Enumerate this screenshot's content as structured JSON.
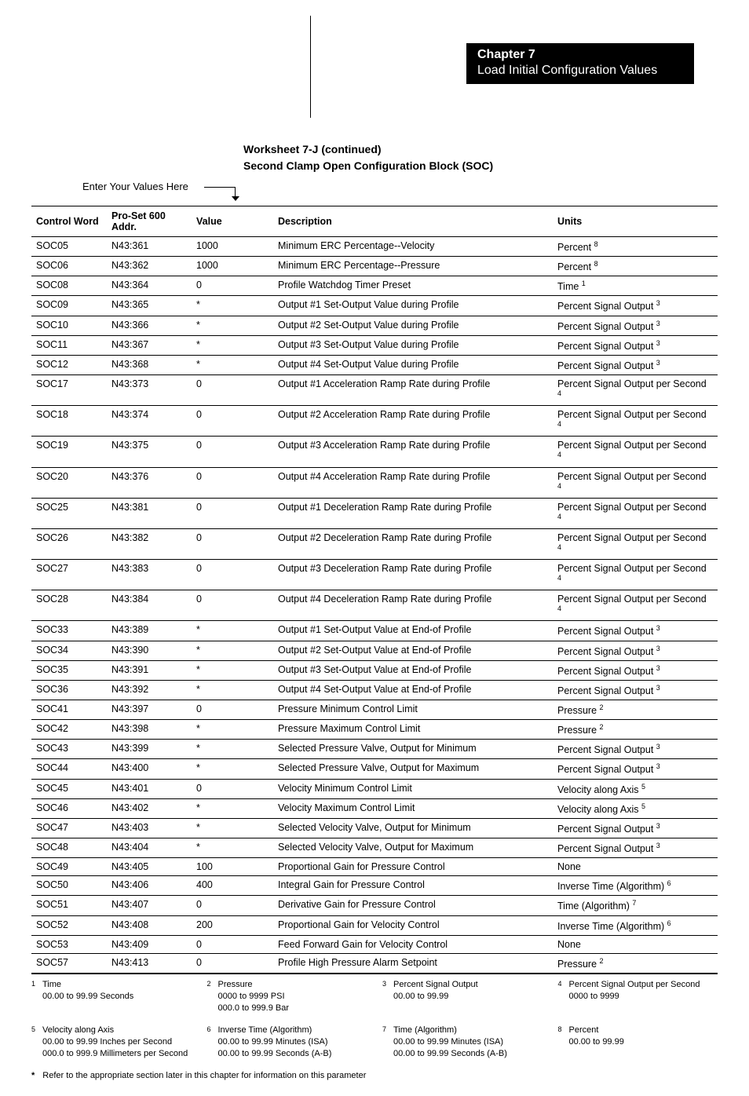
{
  "header": {
    "chapter": "Chapter  7",
    "subtitle": "Load Initial Configuration Values"
  },
  "worksheet": {
    "title1": "Worksheet 7-J (continued)",
    "title2": "Second Clamp Open Configuration Block (SOC)",
    "enter_label": "Enter Your Values Here"
  },
  "table": {
    "headers": [
      "Control Word",
      "Pro-Set 600 Addr.",
      "Value",
      "Description",
      "Units"
    ],
    "rows": [
      {
        "cw": "SOC05",
        "addr": "N43:361",
        "val": "1000",
        "desc": "Minimum ERC Percentage--Velocity",
        "unit": "Percent ",
        "sup": "8"
      },
      {
        "cw": "SOC06",
        "addr": "N43:362",
        "val": "1000",
        "desc": "Minimum ERC Percentage--Pressure",
        "unit": "Percent ",
        "sup": "8"
      },
      {
        "cw": "SOC08",
        "addr": "N43:364",
        "val": "0",
        "desc": "Profile Watchdog Timer Preset",
        "unit": "Time ",
        "sup": "1"
      },
      {
        "cw": "SOC09",
        "addr": "N43:365",
        "val": "*",
        "desc": "Output #1 Set-Output Value during Profile",
        "unit": "Percent Signal Output ",
        "sup": "3"
      },
      {
        "cw": "SOC10",
        "addr": "N43:366",
        "val": "*",
        "desc": "Output #2 Set-Output Value during Profile",
        "unit": "Percent Signal Output ",
        "sup": "3"
      },
      {
        "cw": "SOC11",
        "addr": "N43:367",
        "val": "*",
        "desc": "Output #3 Set-Output Value during Profile",
        "unit": "Percent Signal Output ",
        "sup": "3"
      },
      {
        "cw": "SOC12",
        "addr": "N43:368",
        "val": "*",
        "desc": "Output #4 Set-Output Value during Profile",
        "unit": "Percent Signal Output ",
        "sup": "3"
      },
      {
        "cw": "SOC17",
        "addr": "N43:373",
        "val": "0",
        "desc": "Output #1 Acceleration Ramp Rate during Profile",
        "unit": "Percent Signal Output per Second ",
        "sup": "4"
      },
      {
        "cw": "SOC18",
        "addr": "N43:374",
        "val": "0",
        "desc": "Output #2 Acceleration Ramp Rate during Profile",
        "unit": "Percent Signal Output per Second ",
        "sup": "4"
      },
      {
        "cw": "SOC19",
        "addr": "N43:375",
        "val": "0",
        "desc": "Output #3 Acceleration Ramp Rate during Profile",
        "unit": "Percent Signal Output per Second ",
        "sup": "4"
      },
      {
        "cw": "SOC20",
        "addr": "N43:376",
        "val": "0",
        "desc": "Output #4 Acceleration Ramp Rate during Profile",
        "unit": "Percent Signal Output per Second ",
        "sup": "4"
      },
      {
        "cw": "SOC25",
        "addr": "N43:381",
        "val": "0",
        "desc": "Output #1 Deceleration Ramp Rate during Profile",
        "unit": "Percent Signal Output per Second ",
        "sup": "4"
      },
      {
        "cw": "SOC26",
        "addr": "N43:382",
        "val": "0",
        "desc": "Output #2 Deceleration Ramp Rate during Profile",
        "unit": "Percent Signal Output per Second ",
        "sup": "4"
      },
      {
        "cw": "SOC27",
        "addr": "N43:383",
        "val": "0",
        "desc": "Output #3 Deceleration Ramp Rate during Profile",
        "unit": "Percent Signal Output per Second ",
        "sup": "4"
      },
      {
        "cw": "SOC28",
        "addr": "N43:384",
        "val": "0",
        "desc": "Output #4 Deceleration Ramp Rate during Profile",
        "unit": "Percent Signal Output per Second ",
        "sup": "4"
      },
      {
        "cw": "SOC33",
        "addr": "N43:389",
        "val": "*",
        "desc": "Output #1 Set-Output Value at End-of Profile",
        "unit": "Percent Signal Output ",
        "sup": "3"
      },
      {
        "cw": "SOC34",
        "addr": "N43:390",
        "val": "*",
        "desc": "Output #2 Set-Output Value at End-of Profile",
        "unit": "Percent Signal Output ",
        "sup": "3"
      },
      {
        "cw": "SOC35",
        "addr": "N43:391",
        "val": "*",
        "desc": "Output #3 Set-Output Value at End-of Profile",
        "unit": "Percent Signal Output ",
        "sup": "3"
      },
      {
        "cw": "SOC36",
        "addr": "N43:392",
        "val": "*",
        "desc": "Output #4 Set-Output Value at End-of Profile",
        "unit": "Percent Signal Output ",
        "sup": "3"
      },
      {
        "cw": "SOC41",
        "addr": "N43:397",
        "val": "0",
        "desc": "Pressure Minimum Control Limit",
        "unit": "Pressure ",
        "sup": "2"
      },
      {
        "cw": "SOC42",
        "addr": "N43:398",
        "val": "*",
        "desc": "Pressure Maximum Control Limit",
        "unit": "Pressure ",
        "sup": "2"
      },
      {
        "cw": "SOC43",
        "addr": "N43:399",
        "val": "*",
        "desc": "Selected Pressure Valve, Output for Minimum",
        "unit": "Percent Signal Output ",
        "sup": "3"
      },
      {
        "cw": "SOC44",
        "addr": "N43:400",
        "val": "*",
        "desc": "Selected Pressure Valve, Output for Maximum",
        "unit": "Percent Signal Output ",
        "sup": "3"
      },
      {
        "cw": "SOC45",
        "addr": "N43:401",
        "val": "0",
        "desc": "Velocity Minimum Control Limit",
        "unit": "Velocity along Axis ",
        "sup": "5"
      },
      {
        "cw": "SOC46",
        "addr": "N43:402",
        "val": "*",
        "desc": "Velocity Maximum Control Limit",
        "unit": "Velocity along Axis ",
        "sup": "5"
      },
      {
        "cw": "SOC47",
        "addr": "N43:403",
        "val": "*",
        "desc": "Selected Velocity Valve, Output for Minimum",
        "unit": "Percent Signal Output ",
        "sup": "3"
      },
      {
        "cw": "SOC48",
        "addr": "N43:404",
        "val": "*",
        "desc": "Selected Velocity Valve, Output for Maximum",
        "unit": "Percent Signal Output ",
        "sup": "3"
      },
      {
        "cw": "SOC49",
        "addr": "N43:405",
        "val": "100",
        "desc": "Proportional Gain for Pressure Control",
        "unit": "None",
        "sup": ""
      },
      {
        "cw": "SOC50",
        "addr": "N43:406",
        "val": "400",
        "desc": "Integral Gain for Pressure Control",
        "unit": "Inverse Time (Algorithm) ",
        "sup": "6"
      },
      {
        "cw": "SOC51",
        "addr": "N43:407",
        "val": "0",
        "desc": "Derivative Gain for Pressure Control",
        "unit": "Time (Algorithm) ",
        "sup": "7"
      },
      {
        "cw": "SOC52",
        "addr": "N43:408",
        "val": "200",
        "desc": "Proportional Gain for Velocity Control",
        "unit": "Inverse Time (Algorithm) ",
        "sup": "6"
      },
      {
        "cw": "SOC53",
        "addr": "N43:409",
        "val": "0",
        "desc": "Feed Forward Gain for Velocity Control",
        "unit": "None",
        "sup": ""
      },
      {
        "cw": "SOC57",
        "addr": "N43:413",
        "val": "0",
        "desc": "Profile High Pressure Alarm Setpoint",
        "unit": "Pressure ",
        "sup": "2"
      }
    ]
  },
  "footnotes": {
    "row1": [
      {
        "num": "1",
        "title": "Time",
        "lines": [
          "00.00 to 99.99 Seconds"
        ]
      },
      {
        "num": "2",
        "title": "Pressure",
        "lines": [
          "0000 to 9999 PSI",
          "000.0 to 999.9 Bar"
        ]
      },
      {
        "num": "3",
        "title": "Percent Signal Output",
        "lines": [
          "00.00 to 99.99"
        ]
      },
      {
        "num": "4",
        "title": "Percent Signal Output per Second",
        "lines": [
          "0000 to 9999"
        ]
      }
    ],
    "row2": [
      {
        "num": "5",
        "title": "Velocity along Axis",
        "lines": [
          "00.00 to 99.99 Inches per Second",
          "000.0 to 999.9 Millimeters per Second"
        ]
      },
      {
        "num": "6",
        "title": "Inverse Time (Algorithm)",
        "lines": [
          "00.00 to 99.99 Minutes (ISA)",
          "00.00 to 99.99 Seconds (A-B)"
        ]
      },
      {
        "num": "7",
        "title": "Time (Algorithm)",
        "lines": [
          "00.00 to 99.99 Minutes (ISA)",
          "00.00 to 99.99 Seconds (A-B)"
        ]
      },
      {
        "num": "8",
        "title": "Percent",
        "lines": [
          "00.00 to 99.99"
        ]
      }
    ],
    "asterisk": "Refer to the appropriate section later in this chapter for information on this parameter"
  }
}
